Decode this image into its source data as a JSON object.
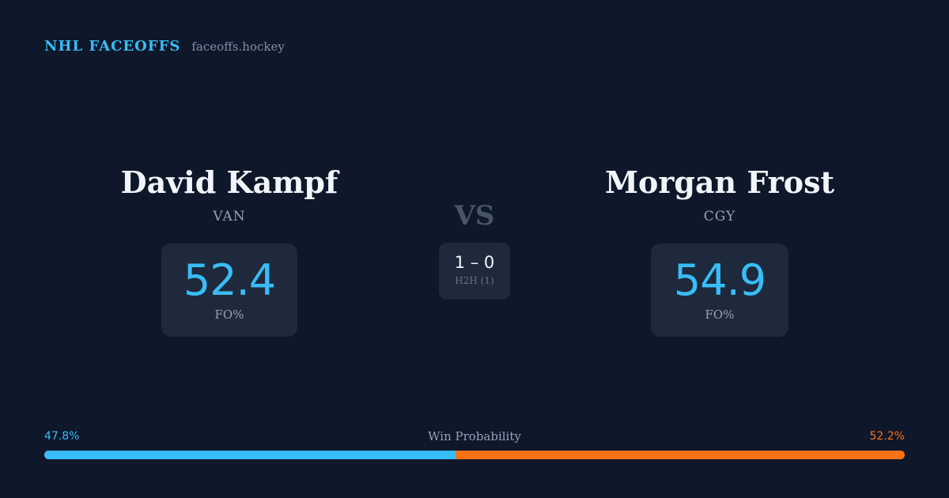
{
  "brand": {
    "name": "NHL FACEOFFS",
    "site": "faceoffs.hockey"
  },
  "matchup": {
    "vs_label": "VS",
    "left_player": {
      "name": "David Kampf",
      "team": "VAN",
      "fo_pct": "52.4",
      "fo_label": "FO%"
    },
    "right_player": {
      "name": "Morgan Frost",
      "team": "CGY",
      "fo_pct": "54.9",
      "fo_label": "FO%"
    },
    "h2h": {
      "score": "1 – 0",
      "label": "H2H (1)"
    }
  },
  "win_probability": {
    "title": "Win Probability",
    "left_text": "47.8%",
    "right_text": "52.2%",
    "left_value": 47.8,
    "right_value": 52.2,
    "left_color": "#38bdf8",
    "right_color": "#f97316"
  },
  "colors": {
    "background": "#0f172a",
    "card": "#1e293b",
    "accent": "#38bdf8",
    "opponent": "#f97316"
  }
}
